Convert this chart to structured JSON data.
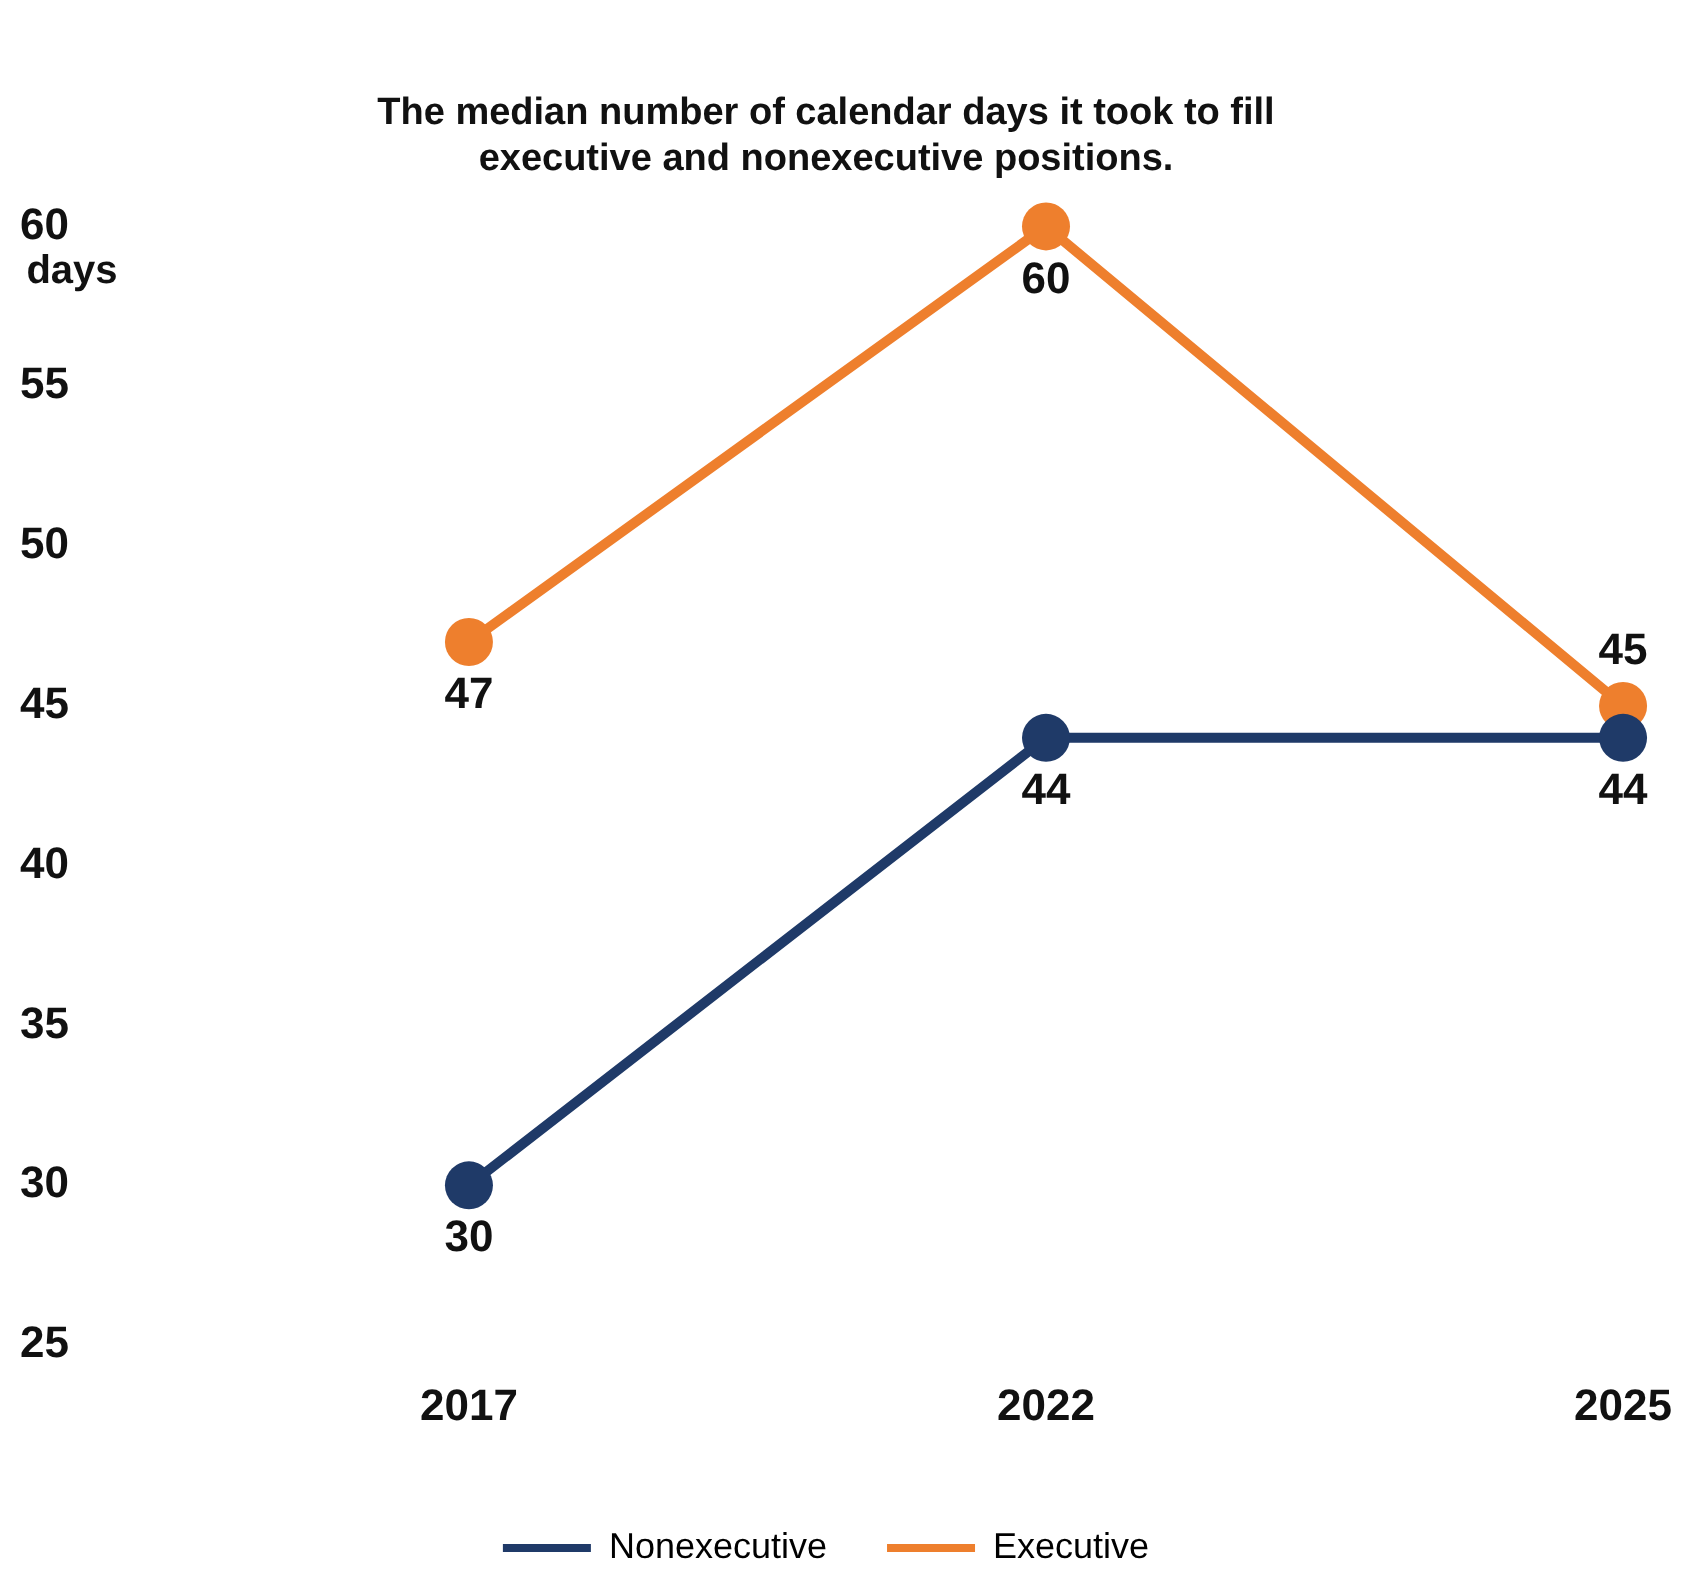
{
  "chart_data": {
    "type": "line",
    "title": "The median number of calendar days it took to fill executive and nonexecutive positions.",
    "ylabel": "days",
    "categories": [
      "2017",
      "2022",
      "2025"
    ],
    "series": [
      {
        "name": "Nonexecutive",
        "color": "#1f3a68",
        "values": [
          30,
          44,
          44
        ]
      },
      {
        "name": "Executive",
        "color": "#ee7f2d",
        "values": [
          47,
          60,
          45
        ]
      }
    ],
    "ylim": [
      25,
      60
    ],
    "yticks": [
      25,
      30,
      35,
      40,
      45,
      50,
      55,
      60
    ],
    "grid": false,
    "legend": "bottom",
    "marker": "circle",
    "line_style": "solid",
    "data_labels": true
  }
}
